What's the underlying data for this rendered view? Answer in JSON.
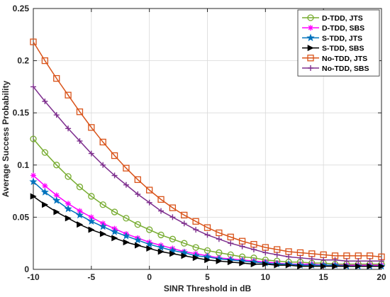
{
  "chart_data": {
    "type": "line",
    "xlabel": "SINR Threshold in dB",
    "ylabel": "Average Success Probability",
    "xlim": [
      -10,
      20
    ],
    "ylim": [
      0,
      0.25
    ],
    "xticks": [
      -10,
      -5,
      0,
      5,
      10,
      15,
      20
    ],
    "yticks": [
      0,
      0.05,
      0.1,
      0.15,
      0.2,
      0.25
    ],
    "ytick_labels": [
      "0",
      "0.05",
      "0.1",
      "0.15",
      "0.2",
      "0.25"
    ],
    "grid": true,
    "legend_position": "top-right",
    "x": [
      -10,
      -9,
      -8,
      -7,
      -6,
      -5,
      -4,
      -3,
      -2,
      -1,
      0,
      1,
      2,
      3,
      4,
      5,
      6,
      7,
      8,
      9,
      10,
      11,
      12,
      13,
      14,
      15,
      16,
      17,
      18,
      19,
      20
    ],
    "series": [
      {
        "name": "D-TDD, JTS",
        "color": "#77AC30",
        "marker": "circle",
        "values": [
          0.125,
          0.112,
          0.1,
          0.089,
          0.079,
          0.07,
          0.062,
          0.055,
          0.049,
          0.043,
          0.038,
          0.033,
          0.029,
          0.025,
          0.021,
          0.018,
          0.016,
          0.014,
          0.012,
          0.011,
          0.009,
          0.008,
          0.007,
          0.007,
          0.006,
          0.006,
          0.005,
          0.005,
          0.005,
          0.005,
          0.005
        ]
      },
      {
        "name": "D-TDD, SBS",
        "color": "#FF00FF",
        "marker": "asterisk",
        "values": [
          0.09,
          0.08,
          0.071,
          0.063,
          0.056,
          0.05,
          0.044,
          0.039,
          0.034,
          0.03,
          0.026,
          0.023,
          0.02,
          0.017,
          0.015,
          0.013,
          0.011,
          0.01,
          0.009,
          0.008,
          0.007,
          0.006,
          0.005,
          0.005,
          0.005,
          0.004,
          0.004,
          0.004,
          0.004,
          0.004,
          0.004
        ]
      },
      {
        "name": "S-TDD, JTS",
        "color": "#0072BD",
        "marker": "star",
        "values": [
          0.084,
          0.074,
          0.066,
          0.058,
          0.052,
          0.046,
          0.041,
          0.036,
          0.032,
          0.028,
          0.024,
          0.021,
          0.018,
          0.016,
          0.013,
          0.012,
          0.01,
          0.009,
          0.008,
          0.007,
          0.006,
          0.005,
          0.005,
          0.004,
          0.004,
          0.004,
          0.004,
          0.003,
          0.003,
          0.003,
          0.003
        ]
      },
      {
        "name": "S-TDD, SBS",
        "color": "#000000",
        "marker": "triangle-right",
        "values": [
          0.07,
          0.062,
          0.055,
          0.049,
          0.043,
          0.038,
          0.034,
          0.03,
          0.026,
          0.023,
          0.02,
          0.017,
          0.015,
          0.013,
          0.011,
          0.009,
          0.008,
          0.007,
          0.006,
          0.005,
          0.005,
          0.004,
          0.004,
          0.003,
          0.003,
          0.003,
          0.003,
          0.003,
          0.003,
          0.003,
          0.003
        ]
      },
      {
        "name": "No-TDD, JTS",
        "color": "#D95319",
        "marker": "square",
        "values": [
          0.218,
          0.2,
          0.183,
          0.167,
          0.151,
          0.136,
          0.122,
          0.109,
          0.097,
          0.086,
          0.076,
          0.067,
          0.059,
          0.052,
          0.046,
          0.04,
          0.035,
          0.031,
          0.027,
          0.024,
          0.021,
          0.019,
          0.017,
          0.016,
          0.015,
          0.014,
          0.013,
          0.013,
          0.013,
          0.013,
          0.012
        ]
      },
      {
        "name": "No-TDD, SBS",
        "color": "#7E2F8E",
        "marker": "plus",
        "values": [
          0.175,
          0.161,
          0.148,
          0.135,
          0.123,
          0.111,
          0.1,
          0.09,
          0.081,
          0.072,
          0.064,
          0.056,
          0.05,
          0.044,
          0.038,
          0.033,
          0.029,
          0.025,
          0.022,
          0.019,
          0.016,
          0.014,
          0.012,
          0.011,
          0.01,
          0.009,
          0.009,
          0.008,
          0.008,
          0.008,
          0.008
        ]
      }
    ]
  }
}
